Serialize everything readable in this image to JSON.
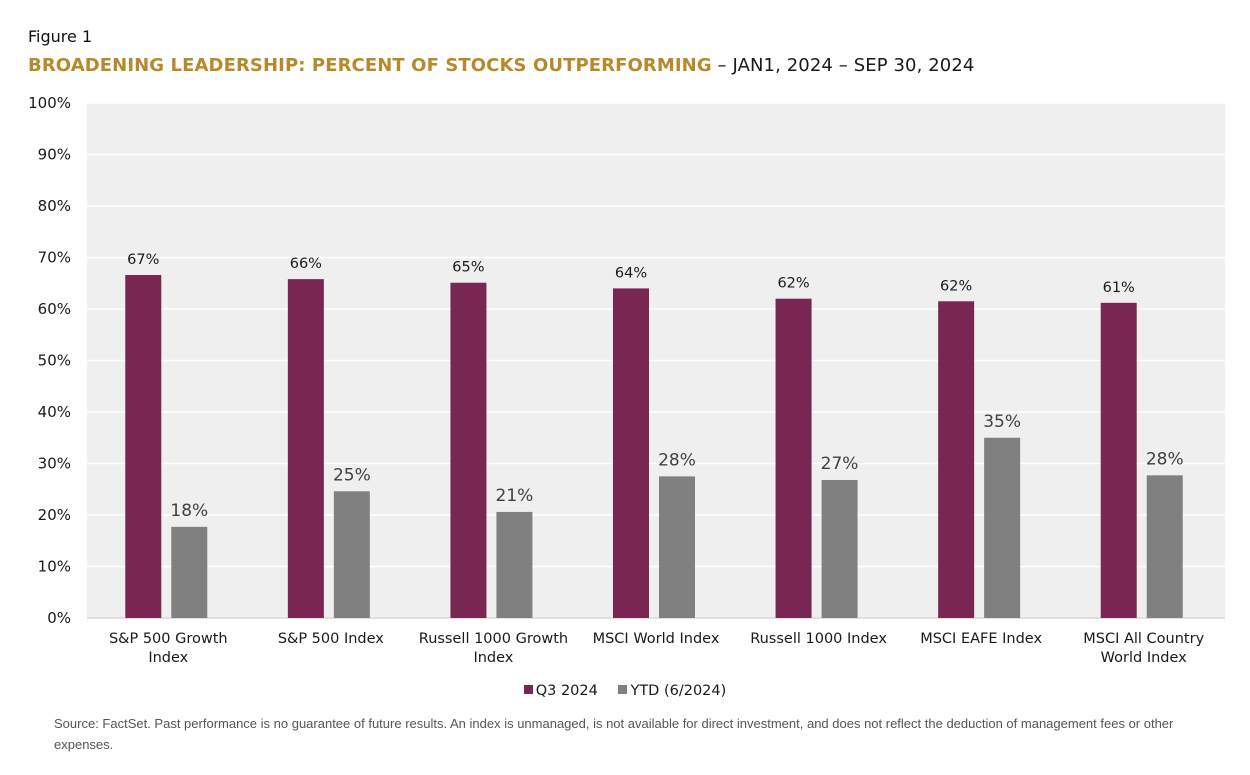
{
  "figure_label": "Figure 1",
  "title_main": "BROADENING LEADERSHIP: PERCENT OF STOCKS OUTPERFORMING",
  "title_sub": " – JAN1, 2024 – SEP 30, 2024",
  "colors": {
    "title_accent": "#b8892a",
    "q3": "#7a2652",
    "ytd": "#808080",
    "plot_bg": "#efefef",
    "grid": "#ffffff"
  },
  "legend": [
    {
      "label": "Q3 2024",
      "color": "#7a2652"
    },
    {
      "label": "YTD (6/2024)",
      "color": "#808080"
    }
  ],
  "source": "Source: FactSet. Past performance is no guarantee of future results. An index is unmanaged, is not available for direct investment, and does not reflect the deduction of management fees or other expenses.",
  "chart_data": {
    "type": "bar",
    "title": "BROADENING LEADERSHIP: PERCENT OF STOCKS OUTPERFORMING – JAN1, 2024 – SEP 30, 2024",
    "xlabel": "",
    "ylabel": "",
    "ylim": [
      0,
      100
    ],
    "yticks": [
      "0%",
      "10%",
      "20%",
      "30%",
      "40%",
      "50%",
      "60%",
      "70%",
      "80%",
      "90%",
      "100%"
    ],
    "grid": true,
    "legend_position": "bottom",
    "categories": [
      [
        "S&P 500 Growth",
        "Index"
      ],
      [
        "S&P 500 Index"
      ],
      [
        "Russell 1000 Growth",
        "Index"
      ],
      [
        "MSCI World Index"
      ],
      [
        "Russell 1000 Index"
      ],
      [
        "MSCI EAFE Index"
      ],
      [
        "MSCI All Country",
        "World Index"
      ]
    ],
    "series": [
      {
        "name": "Q3 2024",
        "values": [
          66.6,
          65.8,
          65.1,
          64.0,
          62.0,
          61.5,
          61.2
        ],
        "labels": [
          "67%",
          "66%",
          "65%",
          "64%",
          "62%",
          "62%",
          "61%"
        ]
      },
      {
        "name": "YTD (6/2024)",
        "values": [
          17.7,
          24.6,
          20.6,
          27.5,
          26.8,
          35.0,
          27.7
        ],
        "labels": [
          "18%",
          "25%",
          "21%",
          "28%",
          "27%",
          "35%",
          "28%"
        ]
      }
    ]
  }
}
